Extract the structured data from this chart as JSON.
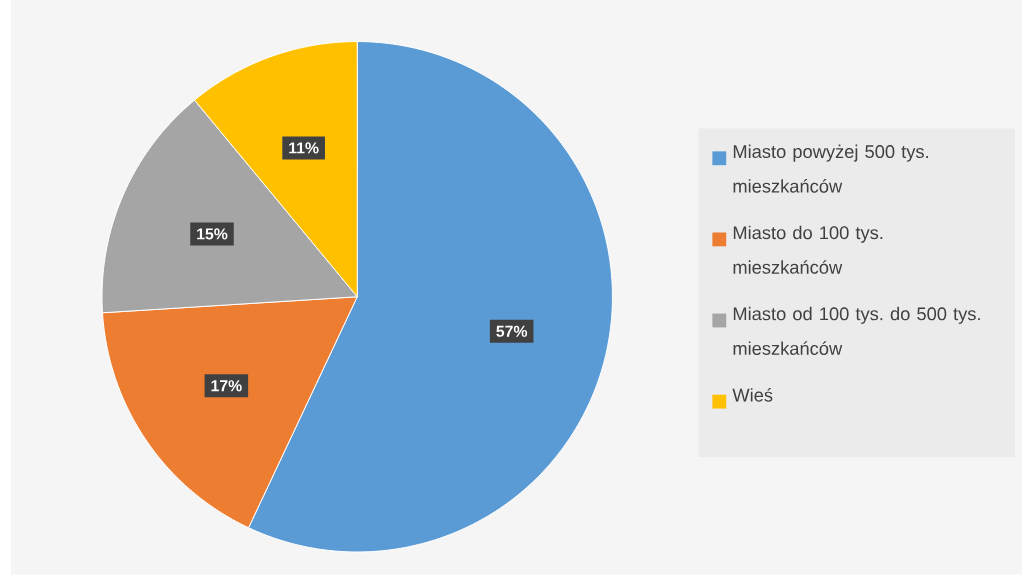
{
  "chart_data": {
    "type": "pie",
    "categories": [
      "Miasto powyżej 500 tys. mieszkańców",
      "Miasto do 100 tys. mieszkańców",
      "Miasto od 100 tys. do 500 tys. mieszkańców",
      "Wieś"
    ],
    "values": [
      57,
      17,
      15,
      11
    ],
    "colors": [
      "#5b9bd5",
      "#ed7d31",
      "#a5a5a5",
      "#ffc000"
    ],
    "value_labels": [
      "57%",
      "17%",
      "15%",
      "11%"
    ],
    "legend": "right"
  }
}
